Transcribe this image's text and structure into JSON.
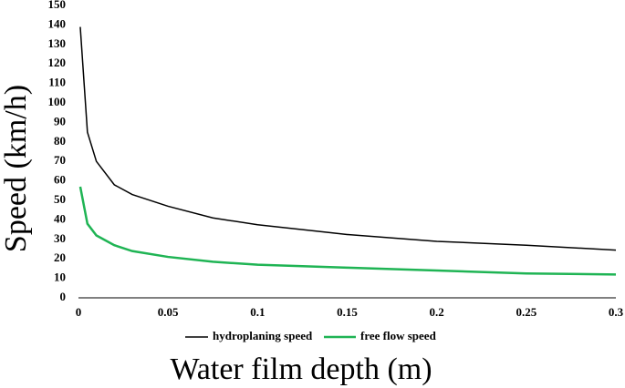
{
  "chart_data": {
    "type": "line",
    "xlabel": "Water film depth (m)",
    "ylabel": "Speed (km/h)",
    "x": [
      0.001,
      0.005,
      0.01,
      0.02,
      0.03,
      0.05,
      0.075,
      0.1,
      0.15,
      0.2,
      0.25,
      0.3
    ],
    "series": [
      {
        "name": "hydroplaning speed",
        "color": "#000000",
        "values": [
          139,
          85,
          70,
          58,
          53,
          47,
          41,
          37.5,
          32.5,
          29,
          27,
          24.5
        ]
      },
      {
        "name": "free flow speed",
        "color": "#1fb454",
        "values": [
          57,
          38,
          32,
          27,
          24,
          21,
          18.5,
          17,
          15.5,
          14,
          12.5,
          12
        ]
      }
    ],
    "xlim": [
      0,
      0.3
    ],
    "xticks": [
      0,
      0.05,
      0.1,
      0.15,
      0.2,
      0.25,
      0.3
    ],
    "ylim": [
      0,
      150
    ],
    "yticks": [
      0,
      10,
      20,
      30,
      40,
      50,
      60,
      70,
      80,
      90,
      100,
      110,
      120,
      130,
      140,
      150
    ],
    "grid": false,
    "legend": "bottom"
  }
}
